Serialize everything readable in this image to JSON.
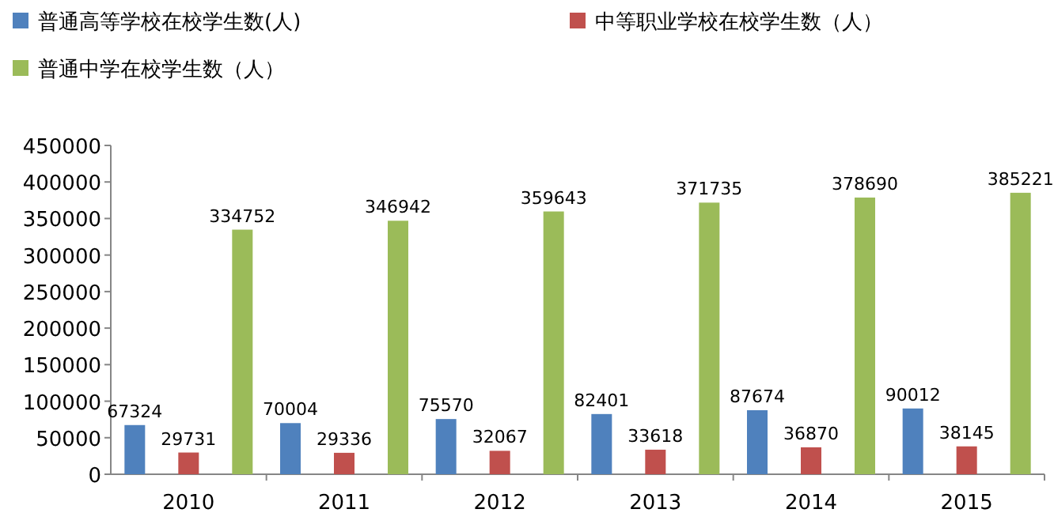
{
  "chart_data": {
    "type": "bar",
    "categories": [
      "2010",
      "2011",
      "2012",
      "2013",
      "2014",
      "2015"
    ],
    "series": [
      {
        "name": "普通高等学校在校学生数(人)",
        "color": "#4f81bd",
        "values": [
          67324,
          70004,
          75570,
          82401,
          87674,
          90012
        ]
      },
      {
        "name": "中等职业学校在校学生数（人）",
        "color": "#c0504d",
        "values": [
          29731,
          29336,
          32067,
          33618,
          36870,
          38145
        ]
      },
      {
        "name": "普通中学在校学生数（人）",
        "color": "#9bbb59",
        "values": [
          334752,
          346942,
          359643,
          371735,
          378690,
          385221
        ]
      }
    ],
    "ylim": [
      0,
      450000
    ],
    "yticks": [
      0,
      50000,
      100000,
      150000,
      200000,
      250000,
      300000,
      350000,
      400000,
      450000
    ],
    "data_labels": true,
    "legend": "top left",
    "grid": false
  }
}
